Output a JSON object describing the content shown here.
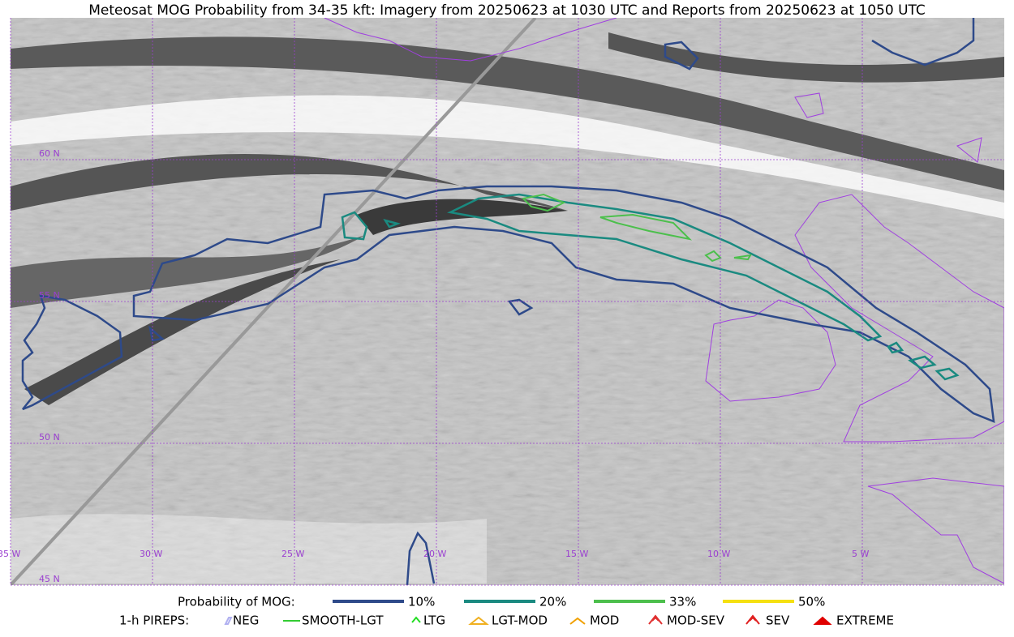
{
  "title": "Meteosat MOG Probability from 34-35 kft: Imagery from 20250623 at 1030 UTC and Reports from 20250623 at 1050 UTC",
  "map": {
    "lat_labels": [
      "60 N",
      "55 N",
      "50 N",
      "45 N"
    ],
    "lon_labels": [
      "35 W",
      "30 W",
      "25 W",
      "20 W",
      "15 W",
      "10 W",
      "5 W"
    ]
  },
  "legend": {
    "probability": {
      "label": "Probability of MOG:",
      "items": [
        {
          "label": "10%",
          "color": "#2e4a8a"
        },
        {
          "label": "20%",
          "color": "#1a8a80"
        },
        {
          "label": "33%",
          "color": "#4cbf4c"
        },
        {
          "label": "50%",
          "color": "#f5e010"
        }
      ]
    },
    "pireps": {
      "label": "1-h PIREPS:",
      "items": [
        {
          "label": "NEG",
          "color": "#b0b0f0"
        },
        {
          "label": "SMOOTH-LGT",
          "color": "#33cc33"
        },
        {
          "label": "LTG",
          "color": "#22dd22"
        },
        {
          "label": "LGT-MOD",
          "color": "#f0b020"
        },
        {
          "label": "MOD",
          "color": "#f0a000"
        },
        {
          "label": "MOD-SEV",
          "color": "#e03030"
        },
        {
          "label": "SEV",
          "color": "#e02020"
        },
        {
          "label": "EXTREME",
          "color": "#e00000"
        }
      ]
    }
  }
}
